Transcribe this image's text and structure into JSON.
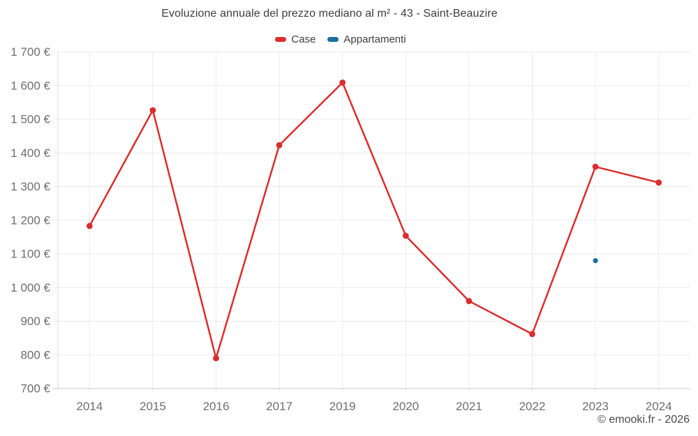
{
  "title": "Evoluzione annuale del prezzo mediano al m² - 43 - Saint-Beauzire",
  "legend": [
    {
      "label": "Case",
      "color": "#dc2c2c"
    },
    {
      "label": "Appartamenti",
      "color": "#1a6d9e"
    }
  ],
  "footer": "© emooki.fr - 2026",
  "colors": {
    "case": "#dc2c2c",
    "appartamenti": "#1a6d9e",
    "grid": "#ebebeb",
    "axis": "#c6c6c6",
    "axis_left": "#d9d9d9",
    "tick_label": "#6e6e6e",
    "title_text": "#3e3e3e",
    "footer_text": "#4b4b4b"
  },
  "chart_data": {
    "type": "line",
    "title": "Evoluzione annuale del prezzo mediano al m² - 43 - Saint-Beauzire",
    "categories": [
      "2014",
      "2015",
      "2016",
      "2017",
      "2019",
      "2020",
      "2021",
      "2022",
      "2023",
      "2024"
    ],
    "series": [
      {
        "name": "Case",
        "color": "#dc2c2c",
        "values": [
          1183,
          1527,
          790,
          1423,
          1609,
          1154,
          960,
          862,
          1359,
          1312
        ]
      },
      {
        "name": "Appartamenti",
        "color": "#1a6d9e",
        "values": [
          null,
          null,
          null,
          null,
          null,
          null,
          null,
          null,
          1080,
          null
        ]
      }
    ],
    "ylabel": "",
    "xlabel": "",
    "ylim": [
      700,
      1700
    ],
    "ytick_step": 100,
    "ytick_labels": [
      "700 €",
      "800 €",
      "900 €",
      "1 000 €",
      "1 100 €",
      "1 200 €",
      "1 300 €",
      "1 400 €",
      "1 500 €",
      "1 600 €",
      "1 700 €"
    ],
    "grid": true,
    "legend_position": "top",
    "currency": "€"
  }
}
